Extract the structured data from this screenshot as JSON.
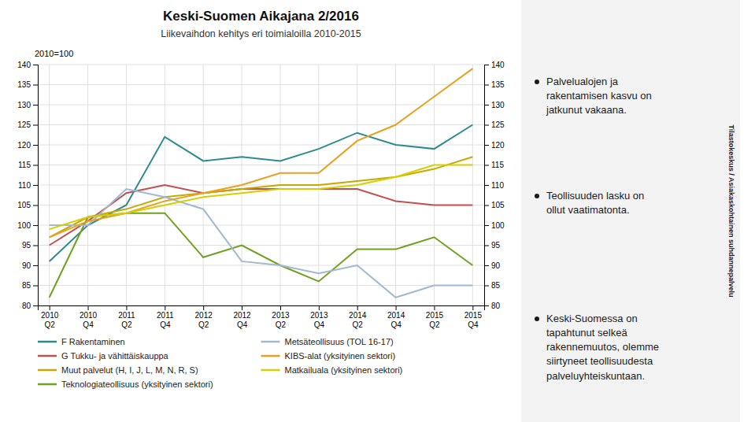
{
  "chart_data": {
    "type": "line",
    "title": "Keski-Suomen Aikajana 2/2016",
    "subtitle": "Liikevaihdon kehitys eri toimialoilla 2010-2015",
    "y_label": "2010=100",
    "categories": [
      "2010\nQ2",
      "2010\nQ4",
      "2011\nQ2",
      "2011\nQ4",
      "2012\nQ2",
      "2012\nQ4",
      "2013\nQ2",
      "2013\nQ4",
      "2014\nQ2",
      "2014\nQ4",
      "2015\nQ2",
      "2015\nQ4"
    ],
    "series": [
      {
        "name": "F Rakentaminen",
        "color": "#2E8B8B",
        "values": [
          91,
          100,
          105,
          122,
          116,
          117,
          116,
          119,
          123,
          120,
          119,
          125
        ]
      },
      {
        "name": "G Tukku- ja vähittäiskauppa",
        "color": "#C0504D",
        "values": [
          95,
          101,
          108,
          110,
          108,
          109,
          109,
          109,
          109,
          106,
          105,
          105
        ]
      },
      {
        "name": "Muut palvelut (H, I, J, L, M, N, R, S)",
        "color": "#C8A800",
        "values": [
          97,
          102,
          104,
          107,
          108,
          109,
          110,
          110,
          111,
          112,
          114,
          117
        ]
      },
      {
        "name": "Teknologiateollisuus (yksityinen sektori)",
        "color": "#70A020",
        "values": [
          82,
          102,
          103,
          103,
          92,
          95,
          90,
          86,
          94,
          94,
          97,
          90
        ]
      },
      {
        "name": "Metsäteollisuus (TOL 16-17)",
        "color": "#A0B8D0",
        "values": [
          100,
          100,
          109,
          107,
          104,
          91,
          90,
          88,
          90,
          82,
          85,
          85
        ]
      },
      {
        "name": "KIBS-alat (yksityinen sektori)",
        "color": "#E8A020",
        "values": [
          97,
          101,
          103,
          106,
          108,
          110,
          113,
          113,
          121,
          125,
          132,
          139
        ]
      },
      {
        "name": "Matkailuala (yksityinen sektori)",
        "color": "#D4D000",
        "values": [
          99,
          102,
          103,
          105,
          107,
          108,
          109,
          109,
          110,
          112,
          115,
          115
        ]
      }
    ],
    "ylim": [
      80,
      140
    ],
    "yticks": [
      80,
      85,
      90,
      95,
      100,
      105,
      110,
      115,
      120,
      125,
      130,
      135,
      140
    ],
    "grid": true,
    "annotations": [
      "Palvelualojen ja\nrakentamisen kasvu on\njatkunut vakaana.",
      "Teollisuuden lasku on\nollut vaatimatonta.",
      "Keski-Suomessa on\ntapahtunut selkeä\nrakennemuutos, olemme\nsiirtyneet teollisuudesta\npalveluyhteiskuntaan."
    ],
    "source": "Tilastokeskus / Asiakaskohtainen suhdannepalvelu"
  }
}
